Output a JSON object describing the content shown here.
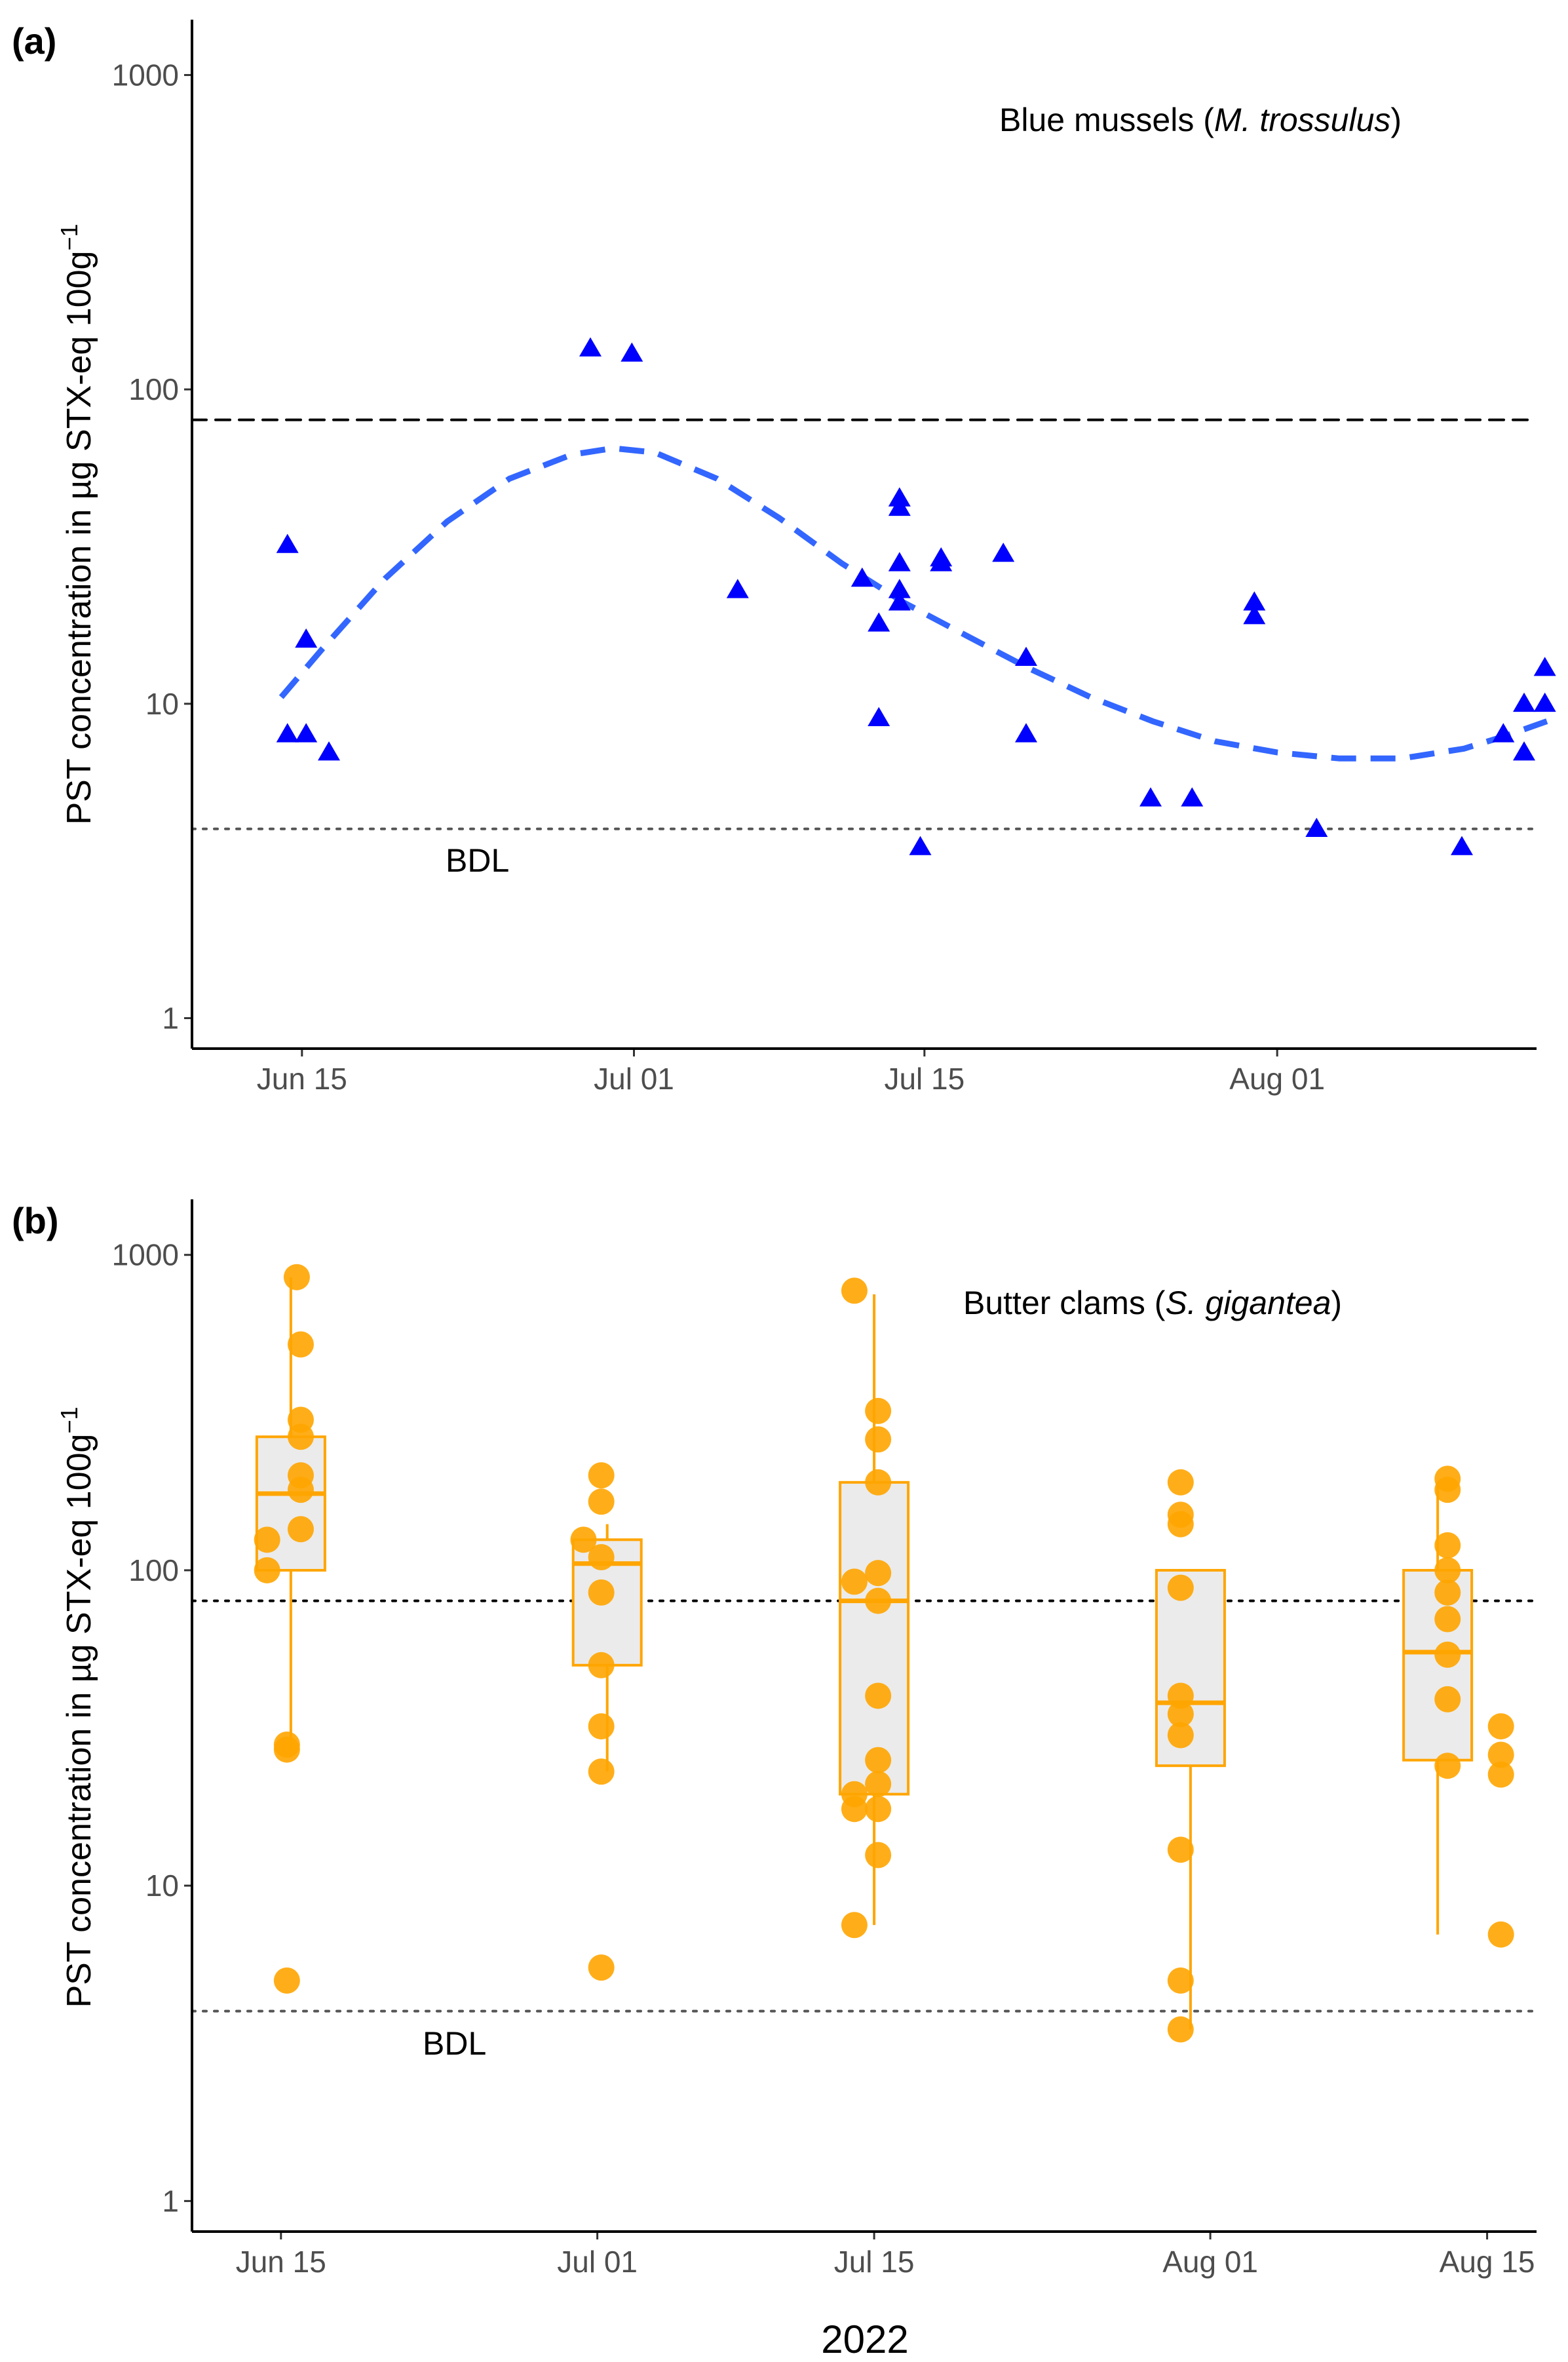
{
  "chart_data": [
    {
      "type": "scatter",
      "panel_label": "(a)",
      "annotation_plain": "Blue mussels (",
      "annotation_italic": "M. trossulus",
      "annotation_close": ")",
      "ylabel": "PST concentration in µg STX-eq 100g",
      "ylabel_sup": "−1",
      "y_scale": "log10",
      "ylim": [
        0.8,
        1500
      ],
      "y_ticks": [
        1,
        10,
        100,
        1000
      ],
      "y_tick_labels": [
        "1",
        "10",
        "100",
        "1000"
      ],
      "x_unit": "day-of-year 2022",
      "xlim": [
        160.7,
        225.5
      ],
      "x_ticks": [
        166,
        182,
        196,
        213
      ],
      "x_tick_labels": [
        "Jun 15",
        "Jul 01",
        "Jul 15",
        "Aug 01"
      ],
      "regulatory_limit": 80,
      "bdl_value": 4,
      "bdl_label": "BDL",
      "marker": "triangle",
      "color": "#0000FF",
      "trend_color": "#3366FF",
      "points": [
        {
          "x": 165.3,
          "y": 32
        },
        {
          "x": 165.3,
          "y": 8
        },
        {
          "x": 166.2,
          "y": 8
        },
        {
          "x": 166.2,
          "y": 16
        },
        {
          "x": 167.3,
          "y": 7
        },
        {
          "x": 179.9,
          "y": 135
        },
        {
          "x": 181.9,
          "y": 130
        },
        {
          "x": 187.0,
          "y": 23
        },
        {
          "x": 193.0,
          "y": 25
        },
        {
          "x": 193.8,
          "y": 18
        },
        {
          "x": 193.8,
          "y": 9
        },
        {
          "x": 194.8,
          "y": 45
        },
        {
          "x": 194.8,
          "y": 42
        },
        {
          "x": 194.8,
          "y": 28
        },
        {
          "x": 194.8,
          "y": 23
        },
        {
          "x": 194.8,
          "y": 21
        },
        {
          "x": 195.8,
          "y": 3.5
        },
        {
          "x": 196.8,
          "y": 29
        },
        {
          "x": 196.8,
          "y": 28
        },
        {
          "x": 199.8,
          "y": 30
        },
        {
          "x": 200.9,
          "y": 14
        },
        {
          "x": 200.9,
          "y": 8
        },
        {
          "x": 206.9,
          "y": 5
        },
        {
          "x": 208.9,
          "y": 5
        },
        {
          "x": 211.9,
          "y": 21
        },
        {
          "x": 211.9,
          "y": 19
        },
        {
          "x": 214.9,
          "y": 4
        },
        {
          "x": 221.9,
          "y": 3.5
        },
        {
          "x": 223.9,
          "y": 8
        },
        {
          "x": 224.9,
          "y": 10
        },
        {
          "x": 224.9,
          "y": 7
        },
        {
          "x": 225.9,
          "y": 13
        },
        {
          "x": 225.9,
          "y": 10
        }
      ],
      "trend": [
        {
          "x": 165,
          "y": 10.5
        },
        {
          "x": 167,
          "y": 15
        },
        {
          "x": 170,
          "y": 25
        },
        {
          "x": 173,
          "y": 38
        },
        {
          "x": 176,
          "y": 52
        },
        {
          "x": 179,
          "y": 62
        },
        {
          "x": 181,
          "y": 65
        },
        {
          "x": 183,
          "y": 63
        },
        {
          "x": 186,
          "y": 52
        },
        {
          "x": 189,
          "y": 39
        },
        {
          "x": 192,
          "y": 28
        },
        {
          "x": 195,
          "y": 21
        },
        {
          "x": 198,
          "y": 16.5
        },
        {
          "x": 201,
          "y": 13
        },
        {
          "x": 204,
          "y": 10.5
        },
        {
          "x": 207,
          "y": 8.8
        },
        {
          "x": 210,
          "y": 7.6
        },
        {
          "x": 213,
          "y": 7.0
        },
        {
          "x": 216,
          "y": 6.7
        },
        {
          "x": 219,
          "y": 6.7
        },
        {
          "x": 222,
          "y": 7.2
        },
        {
          "x": 224,
          "y": 7.9
        },
        {
          "x": 226,
          "y": 8.8
        }
      ]
    },
    {
      "type": "box",
      "panel_label": "(b)",
      "annotation_plain": "Butter clams (",
      "annotation_italic": "S. gigantea",
      "annotation_close": ")",
      "ylabel": "PST concentration in µg STX-eq 100g",
      "ylabel_sup": "−1",
      "xlabel": "2022",
      "y_scale": "log10",
      "ylim": [
        0.8,
        1500
      ],
      "y_ticks": [
        1,
        10,
        100,
        1000
      ],
      "y_tick_labels": [
        "1",
        "10",
        "100",
        "1000"
      ],
      "x_unit": "day-of-year 2022",
      "xlim": [
        161.5,
        229.5
      ],
      "x_ticks": [
        166,
        182,
        196,
        213,
        227
      ],
      "x_tick_labels": [
        "Jun 15",
        "Jul 01",
        "Jul 15",
        "Aug 01",
        "Aug 15"
      ],
      "regulatory_limit": 80,
      "bdl_value": 4,
      "bdl_label": "BDL",
      "color": "#FFA500",
      "box_fill": "#EBEBEB",
      "boxes": [
        {
          "x": 166.5,
          "whisker_low": 27,
          "q1": 100,
          "median": 175,
          "q3": 265,
          "whisker_high": 850
        },
        {
          "x": 182.5,
          "whisker_low": 23,
          "q1": 50,
          "median": 105,
          "q3": 125,
          "whisker_high": 140
        },
        {
          "x": 196.0,
          "whisker_low": 7.5,
          "q1": 19.5,
          "median": 80,
          "q3": 190,
          "whisker_high": 750
        },
        {
          "x": 212.0,
          "whisker_low": 3.5,
          "q1": 24,
          "median": 38,
          "q3": 100,
          "whisker_high": 100
        },
        {
          "x": 224.5,
          "whisker_low": 7,
          "q1": 25,
          "median": 55,
          "q3": 100,
          "whisker_high": 190
        }
      ],
      "points": [
        {
          "x": 165.3,
          "y": 100
        },
        {
          "x": 165.3,
          "y": 125
        },
        {
          "x": 166.3,
          "y": 5
        },
        {
          "x": 166.3,
          "y": 28
        },
        {
          "x": 166.3,
          "y": 27
        },
        {
          "x": 166.8,
          "y": 850
        },
        {
          "x": 167.0,
          "y": 520
        },
        {
          "x": 167.0,
          "y": 300
        },
        {
          "x": 167.0,
          "y": 265
        },
        {
          "x": 167.0,
          "y": 200
        },
        {
          "x": 167.0,
          "y": 180
        },
        {
          "x": 167.0,
          "y": 135
        },
        {
          "x": 181.3,
          "y": 125
        },
        {
          "x": 182.2,
          "y": 5.5
        },
        {
          "x": 182.2,
          "y": 23
        },
        {
          "x": 182.2,
          "y": 32
        },
        {
          "x": 182.2,
          "y": 50
        },
        {
          "x": 182.2,
          "y": 85
        },
        {
          "x": 182.2,
          "y": 110
        },
        {
          "x": 182.2,
          "y": 165
        },
        {
          "x": 182.2,
          "y": 200
        },
        {
          "x": 195.0,
          "y": 7.5
        },
        {
          "x": 195.0,
          "y": 17.5
        },
        {
          "x": 195.0,
          "y": 19.5
        },
        {
          "x": 195.0,
          "y": 92
        },
        {
          "x": 195.0,
          "y": 770
        },
        {
          "x": 196.2,
          "y": 12.5
        },
        {
          "x": 196.2,
          "y": 17.5
        },
        {
          "x": 196.2,
          "y": 21
        },
        {
          "x": 196.2,
          "y": 25
        },
        {
          "x": 196.2,
          "y": 40
        },
        {
          "x": 196.2,
          "y": 80
        },
        {
          "x": 196.2,
          "y": 98
        },
        {
          "x": 196.2,
          "y": 190
        },
        {
          "x": 196.2,
          "y": 260
        },
        {
          "x": 196.2,
          "y": 320
        },
        {
          "x": 211.5,
          "y": 3.5
        },
        {
          "x": 211.5,
          "y": 5
        },
        {
          "x": 211.5,
          "y": 13
        },
        {
          "x": 211.5,
          "y": 30
        },
        {
          "x": 211.5,
          "y": 35
        },
        {
          "x": 211.5,
          "y": 40
        },
        {
          "x": 211.5,
          "y": 88
        },
        {
          "x": 211.5,
          "y": 140
        },
        {
          "x": 211.5,
          "y": 150
        },
        {
          "x": 211.5,
          "y": 190
        },
        {
          "x": 225.0,
          "y": 24
        },
        {
          "x": 225.0,
          "y": 39
        },
        {
          "x": 225.0,
          "y": 54
        },
        {
          "x": 225.0,
          "y": 70
        },
        {
          "x": 225.0,
          "y": 85
        },
        {
          "x": 225.0,
          "y": 100
        },
        {
          "x": 225.0,
          "y": 120
        },
        {
          "x": 225.0,
          "y": 180
        },
        {
          "x": 225.0,
          "y": 195
        },
        {
          "x": 227.7,
          "y": 7
        },
        {
          "x": 227.7,
          "y": 22.5
        },
        {
          "x": 227.7,
          "y": 26
        },
        {
          "x": 227.7,
          "y": 32
        }
      ]
    }
  ]
}
